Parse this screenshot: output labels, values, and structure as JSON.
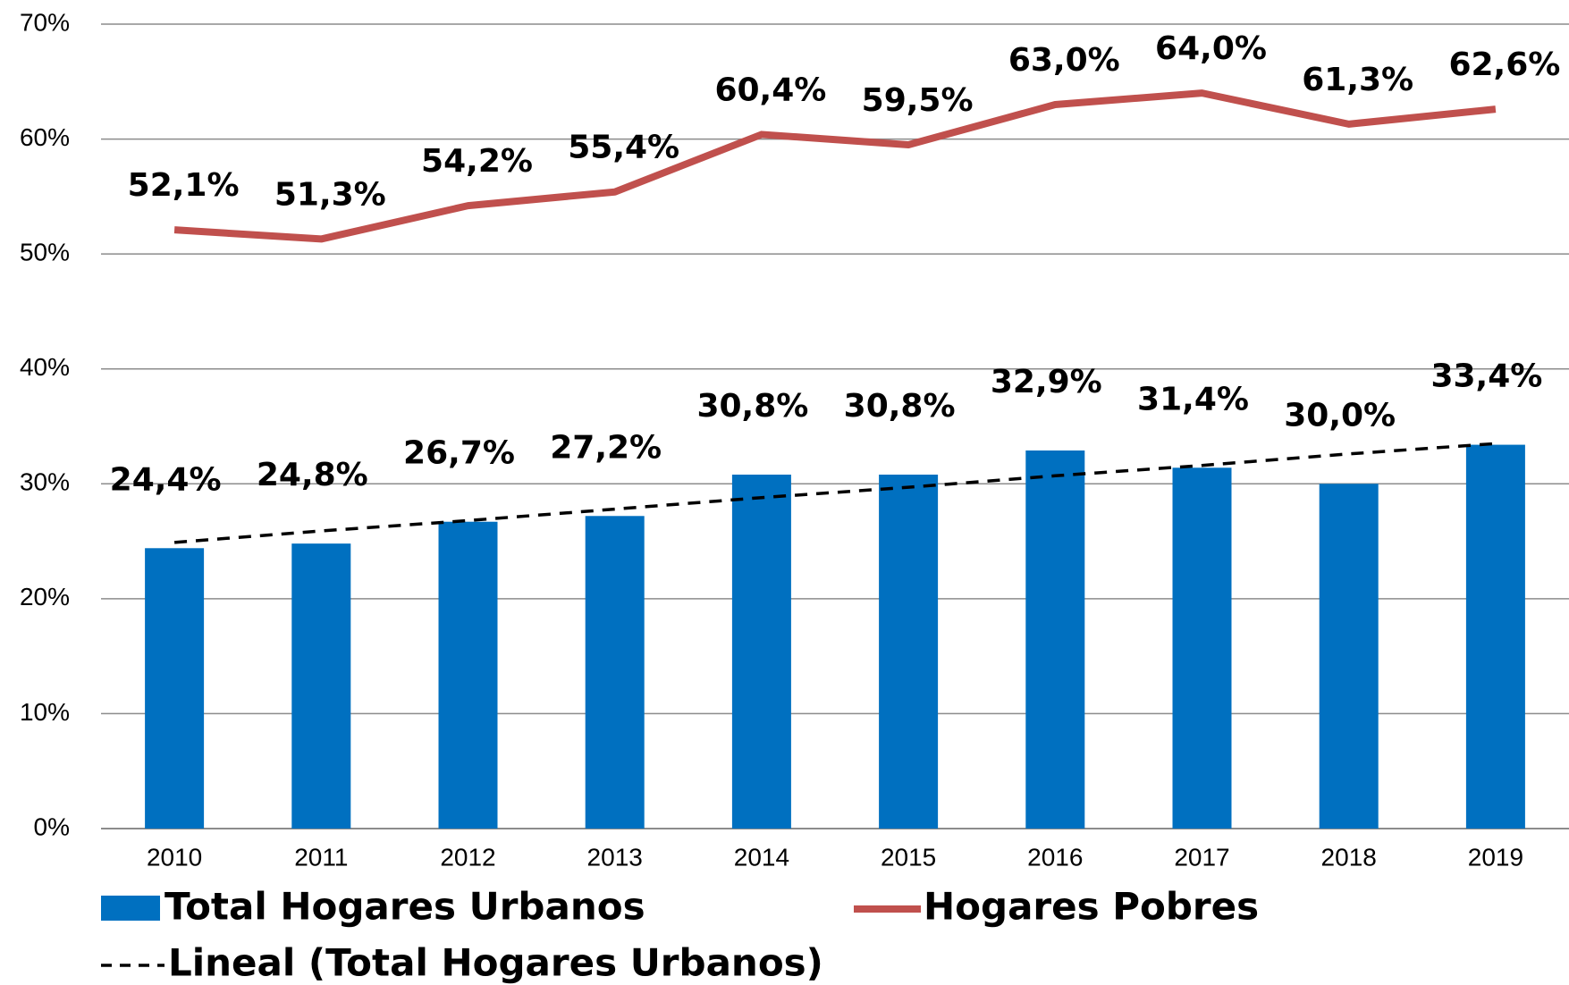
{
  "chart_data": {
    "type": "bar",
    "categories": [
      "2010",
      "2011",
      "2012",
      "2013",
      "2014",
      "2015",
      "2016",
      "2017",
      "2018",
      "2019"
    ],
    "series": [
      {
        "name": "Total Hogares Urbanos",
        "type": "bar",
        "color": "#0070c0",
        "values": [
          24.4,
          24.8,
          26.7,
          27.2,
          30.8,
          30.8,
          32.9,
          31.4,
          30.0,
          33.4
        ],
        "value_labels": [
          "24,4%",
          "24,8%",
          "26,7%",
          "27,2%",
          "30,8%",
          "30,8%",
          "32,9%",
          "31,4%",
          "30,0%",
          "33,4%"
        ]
      },
      {
        "name": "Hogares Pobres",
        "type": "line",
        "color": "#c0504d",
        "values": [
          52.1,
          51.3,
          54.2,
          55.4,
          60.4,
          59.5,
          63.0,
          64.0,
          61.3,
          62.6
        ],
        "value_labels": [
          "52,1%",
          "51,3%",
          "54,2%",
          "55,4%",
          "60,4%",
          "59,5%",
          "63,0%",
          "64,0%",
          "61,3%",
          "62,6%"
        ]
      }
    ],
    "trend": {
      "name": "Lineal (Total Hogares Urbanos)",
      "color": "#000000",
      "values": [
        24.9,
        25.9,
        26.8,
        27.8,
        28.8,
        29.7,
        30.7,
        31.6,
        32.6,
        33.5
      ]
    },
    "ylim": [
      0,
      70
    ],
    "yticks": [
      {
        "value": 0,
        "label": "0%"
      },
      {
        "value": 10,
        "label": "10%"
      },
      {
        "value": 20,
        "label": "20%"
      },
      {
        "value": 30,
        "label": "30%"
      },
      {
        "value": 40,
        "label": "40%"
      },
      {
        "value": 50,
        "label": "50%"
      },
      {
        "value": 60,
        "label": "60%"
      },
      {
        "value": 70,
        "label": "70%"
      }
    ],
    "grid": true
  }
}
